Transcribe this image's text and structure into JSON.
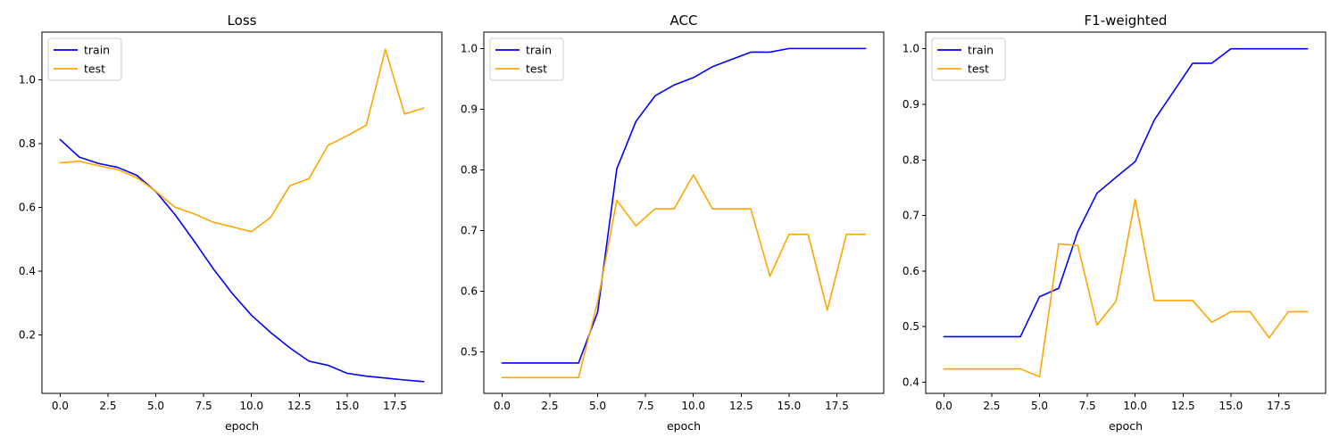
{
  "chart_data": [
    {
      "type": "line",
      "title": "Loss",
      "xlabel": "epoch",
      "ylabel": "",
      "xlim": [
        -0.95,
        19.95
      ],
      "ylim": [
        0.017,
        1.15
      ],
      "xticks": [
        0.0,
        2.5,
        5.0,
        7.5,
        10.0,
        12.5,
        15.0,
        17.5
      ],
      "xtick_labels": [
        "0.0",
        "2.5",
        "5.0",
        "7.5",
        "10.0",
        "12.5",
        "15.0",
        "17.5"
      ],
      "yticks": [
        0.2,
        0.4,
        0.6,
        0.8,
        1.0
      ],
      "ytick_labels": [
        "0.2",
        "0.4",
        "0.6",
        "0.8",
        "1.0"
      ],
      "legend_position": "top-left",
      "x": [
        0,
        1,
        2,
        3,
        4,
        5,
        6,
        7,
        8,
        9,
        10,
        11,
        12,
        13,
        14,
        15,
        16,
        17,
        18,
        19
      ],
      "series": [
        {
          "name": "train",
          "color": "#0000ff",
          "values": [
            0.813,
            0.758,
            0.738,
            0.726,
            0.701,
            0.65,
            0.578,
            0.495,
            0.408,
            0.33,
            0.262,
            0.208,
            0.16,
            0.118,
            0.105,
            0.08,
            0.071,
            0.065,
            0.059,
            0.054
          ]
        },
        {
          "name": "test",
          "color": "#ffa500",
          "values": [
            0.74,
            0.745,
            0.731,
            0.719,
            0.694,
            0.651,
            0.601,
            0.58,
            0.554,
            0.539,
            0.524,
            0.569,
            0.668,
            0.69,
            0.795,
            0.825,
            0.858,
            1.096,
            0.893,
            0.912
          ]
        }
      ]
    },
    {
      "type": "line",
      "title": "ACC",
      "xlabel": "epoch",
      "ylabel": "",
      "xlim": [
        -0.95,
        19.95
      ],
      "ylim": [
        0.432,
        1.027
      ],
      "xticks": [
        0.0,
        2.5,
        5.0,
        7.5,
        10.0,
        12.5,
        15.0,
        17.5
      ],
      "xtick_labels": [
        "0.0",
        "2.5",
        "5.0",
        "7.5",
        "10.0",
        "12.5",
        "15.0",
        "17.5"
      ],
      "yticks": [
        0.5,
        0.6,
        0.7,
        0.8,
        0.9,
        1.0
      ],
      "ytick_labels": [
        "0.5",
        "0.6",
        "0.7",
        "0.8",
        "0.9",
        "1.0"
      ],
      "legend_position": "top-left",
      "x": [
        0,
        1,
        2,
        3,
        4,
        5,
        6,
        7,
        8,
        9,
        10,
        11,
        12,
        13,
        14,
        15,
        16,
        17,
        18,
        19
      ],
      "series": [
        {
          "name": "train",
          "color": "#0000ff",
          "values": [
            0.482,
            0.482,
            0.482,
            0.482,
            0.482,
            0.566,
            0.802,
            0.88,
            0.922,
            0.94,
            0.952,
            0.97,
            0.982,
            0.994,
            0.994,
            1.0,
            1.0,
            1.0,
            1.0,
            1.0
          ]
        },
        {
          "name": "test",
          "color": "#ffa500",
          "values": [
            0.458,
            0.458,
            0.458,
            0.458,
            0.458,
            0.583,
            0.75,
            0.708,
            0.736,
            0.736,
            0.792,
            0.736,
            0.736,
            0.736,
            0.625,
            0.694,
            0.694,
            0.569,
            0.694,
            0.694
          ]
        }
      ]
    },
    {
      "type": "line",
      "title": "F1-weighted",
      "xlabel": "epoch",
      "ylabel": "",
      "xlim": [
        -0.95,
        19.95
      ],
      "ylim": [
        0.38,
        1.03
      ],
      "xticks": [
        0.0,
        2.5,
        5.0,
        7.5,
        10.0,
        12.5,
        15.0,
        17.5
      ],
      "xtick_labels": [
        "0.0",
        "2.5",
        "5.0",
        "7.5",
        "10.0",
        "12.5",
        "15.0",
        "17.5"
      ],
      "yticks": [
        0.4,
        0.5,
        0.6,
        0.7,
        0.8,
        0.9,
        1.0
      ],
      "ytick_labels": [
        "0.4",
        "0.5",
        "0.6",
        "0.7",
        "0.8",
        "0.9",
        "1.0"
      ],
      "legend_position": "top-left",
      "x": [
        0,
        1,
        2,
        3,
        4,
        5,
        6,
        7,
        8,
        9,
        10,
        11,
        12,
        13,
        14,
        15,
        16,
        17,
        18,
        19
      ],
      "series": [
        {
          "name": "train",
          "color": "#0000ff",
          "values": [
            0.482,
            0.482,
            0.482,
            0.482,
            0.482,
            0.554,
            0.569,
            0.671,
            0.74,
            0.769,
            0.797,
            0.872,
            0.923,
            0.974,
            0.974,
            1.0,
            1.0,
            1.0,
            1.0,
            1.0
          ]
        },
        {
          "name": "test",
          "color": "#ffa500",
          "values": [
            0.424,
            0.424,
            0.424,
            0.424,
            0.424,
            0.41,
            0.649,
            0.646,
            0.503,
            0.546,
            0.729,
            0.547,
            0.547,
            0.547,
            0.508,
            0.527,
            0.527,
            0.48,
            0.527,
            0.527
          ]
        }
      ]
    }
  ]
}
